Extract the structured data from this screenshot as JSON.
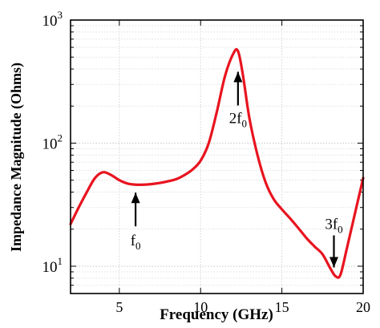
{
  "chart_data": {
    "type": "line",
    "xlabel": "Frequency (GHz)",
    "ylabel": "Impedance Magnitude (Ohms)",
    "xlim": [
      2,
      20
    ],
    "ylim": [
      6,
      1000
    ],
    "yscale": "log",
    "grid": true,
    "xticks": [
      5,
      10,
      15,
      20
    ],
    "xtick_labels": [
      "5",
      "10",
      "15",
      "20"
    ],
    "yticks": [
      10,
      100,
      1000
    ],
    "ytick_labels": [
      {
        "base": "10",
        "exp": "1"
      },
      {
        "base": "10",
        "exp": "2"
      },
      {
        "base": "10",
        "exp": "3"
      }
    ],
    "series": [
      {
        "color": "#e8141f",
        "x": [
          2.0,
          2.5,
          3.0,
          3.5,
          4.0,
          4.5,
          5.0,
          5.5,
          6.0,
          6.5,
          7.0,
          7.5,
          8.0,
          8.5,
          9.0,
          9.5,
          10.0,
          10.5,
          11.0,
          11.5,
          12.0,
          12.3,
          12.6,
          13.0,
          13.5,
          14.0,
          14.5,
          15.0,
          15.5,
          16.0,
          16.5,
          17.0,
          17.5,
          18.0,
          18.3,
          18.6,
          19.0,
          19.5,
          20.0
        ],
        "y": [
          22,
          30,
          40,
          52,
          58,
          55,
          50,
          47,
          46,
          46,
          46.5,
          47.5,
          49,
          51,
          55,
          61,
          72,
          100,
          180,
          350,
          530,
          560,
          360,
          160,
          80,
          48,
          35,
          29,
          24.5,
          20.5,
          17,
          14.5,
          12.5,
          9.5,
          8.3,
          8.5,
          14,
          27,
          52
        ]
      }
    ],
    "annotations": [
      {
        "base": "f",
        "sub": "0",
        "x": 6.0,
        "y": 46
      },
      {
        "base": "2f",
        "sub": "0",
        "x": 12.3,
        "y": 380
      },
      {
        "base": "3f",
        "sub": "0",
        "x": 18.2,
        "y": 9.2
      }
    ]
  }
}
